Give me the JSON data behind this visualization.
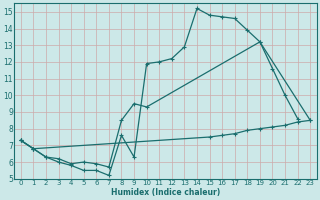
{
  "xlabel": "Humidex (Indice chaleur)",
  "bg_color": "#cce8e8",
  "grid_color": "#b0cccc",
  "line_color": "#1a6e6e",
  "xlim": [
    -0.5,
    23.5
  ],
  "ylim": [
    5,
    15.5
  ],
  "xticks": [
    0,
    1,
    2,
    3,
    4,
    5,
    6,
    7,
    8,
    9,
    10,
    11,
    12,
    13,
    14,
    15,
    16,
    17,
    18,
    19,
    20,
    21,
    22,
    23
  ],
  "yticks": [
    5,
    6,
    7,
    8,
    9,
    10,
    11,
    12,
    13,
    14,
    15
  ],
  "line1_x": [
    0,
    1,
    2,
    3,
    4,
    5,
    6,
    7,
    8,
    9,
    10,
    11,
    12,
    13,
    14,
    15,
    16,
    17,
    18,
    19,
    20,
    21,
    22
  ],
  "line1_y": [
    7.3,
    6.8,
    6.3,
    6.0,
    5.8,
    5.5,
    5.5,
    5.2,
    7.6,
    6.3,
    11.9,
    12.0,
    12.2,
    12.9,
    15.2,
    14.8,
    14.7,
    14.6,
    13.9,
    13.2,
    11.6,
    10.0,
    8.6
  ],
  "line2_x": [
    0,
    1,
    2,
    3,
    4,
    5,
    6,
    7,
    8,
    9,
    10,
    19,
    23
  ],
  "line2_y": [
    7.3,
    6.8,
    6.3,
    6.2,
    5.9,
    6.0,
    5.9,
    5.7,
    8.5,
    9.5,
    9.3,
    13.2,
    8.5
  ],
  "line3_x": [
    0,
    1,
    15,
    16,
    17,
    18,
    19,
    20,
    21,
    22,
    23
  ],
  "line3_y": [
    7.3,
    6.8,
    7.5,
    7.6,
    7.7,
    7.9,
    8.0,
    8.1,
    8.2,
    8.4,
    8.5
  ]
}
